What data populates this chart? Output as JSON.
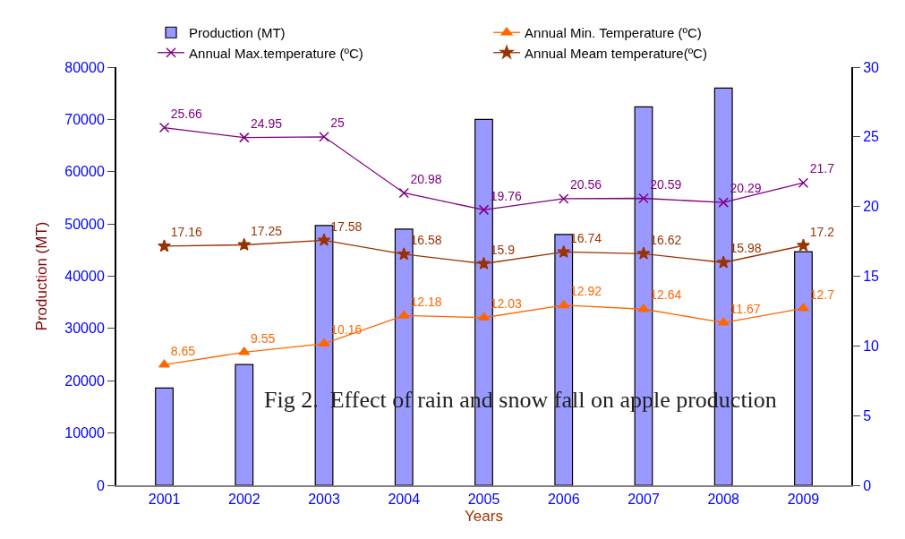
{
  "chart_data": {
    "type": "bar",
    "xlabel": "Years",
    "ylabel": "Production (MT)",
    "categories": [
      "2001",
      "2002",
      "2003",
      "2004",
      "2005",
      "2006",
      "2007",
      "2008",
      "2009"
    ],
    "series": [
      {
        "name": "Production (MT)",
        "color": "#9999ff",
        "values": [
          18600,
          23100,
          49700,
          49000,
          70000,
          48000,
          72400,
          76000,
          44700
        ]
      },
      {
        "name": "Annual Min. Temperature (ºC)",
        "type": "line",
        "axis": "y2",
        "marker": "triangle",
        "color": "#ff6600",
        "values": [
          8.65,
          9.55,
          10.16,
          12.18,
          12.03,
          12.92,
          12.64,
          11.67,
          12.7
        ],
        "value_labels": [
          "8.65",
          "9.55",
          "10.16",
          "12.18",
          "12.03",
          "12.92",
          "12.64",
          "11.67",
          "12.7"
        ]
      },
      {
        "name": "Annual Max.temperature (ºC)",
        "type": "line",
        "axis": "y2",
        "marker": "cross",
        "color": "#800080",
        "values": [
          25.66,
          24.95,
          25,
          20.98,
          19.76,
          20.56,
          20.59,
          20.29,
          21.7
        ],
        "value_labels": [
          "25.66",
          "24.95",
          "25",
          "20.98",
          "19.76",
          "20.56",
          "20.59",
          "20.29",
          "21.7"
        ]
      },
      {
        "name": "Annual Meam temperature(ºC)",
        "type": "line",
        "axis": "y2",
        "marker": "star",
        "color": "#993300",
        "values": [
          17.16,
          17.25,
          17.58,
          16.58,
          15.9,
          16.74,
          16.62,
          15.98,
          17.2
        ],
        "value_labels": [
          "17.16",
          "17.25",
          "17.58",
          "16.58",
          "15.9",
          "16.74",
          "16.62",
          "15.98",
          "17.2"
        ]
      }
    ],
    "ylim": [
      0,
      80000
    ],
    "yticks": [
      0,
      10000,
      20000,
      30000,
      40000,
      50000,
      60000,
      70000,
      80000
    ],
    "y2lim": [
      0,
      30
    ],
    "y2ticks": [
      0,
      5,
      10,
      15,
      20,
      25,
      30
    ],
    "legend": "top",
    "annotations": [
      "Fig 2.  Effect of rain and snow fall on apple production"
    ]
  }
}
